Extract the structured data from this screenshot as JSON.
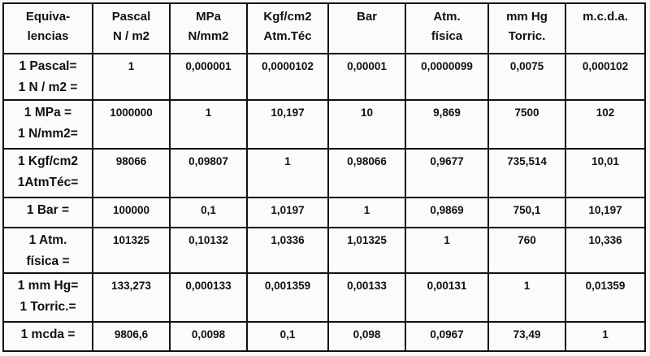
{
  "table": {
    "header": [
      "Equiva-\nlencias",
      "Pascal\nN / m2",
      "MPa\nN/mm2",
      "Kgf/cm2\nAtm.Téc",
      "Bar",
      "Atm.\nfísica",
      "mm Hg\nTorric.",
      "m.c.d.a."
    ],
    "rows": [
      [
        "1 Pascal=\n1 N / m2 =",
        "1",
        "0,000001",
        "0,0000102",
        "0,00001",
        "0,0000099",
        "0,0075",
        "0,000102"
      ],
      [
        "1 MPa =\n1 N/mm2=",
        "1000000",
        "1",
        "10,197",
        "10",
        "9,869",
        "7500",
        "102"
      ],
      [
        "1 Kgf/cm2\n1AtmTéc=",
        "98066",
        "0,09807",
        "1",
        "0,98066",
        "0,9677",
        "735,514",
        "10,01"
      ],
      [
        "1 Bar =",
        "100000",
        "0,1",
        "1,0197",
        "1",
        "0,9869",
        "750,1",
        "10,197"
      ],
      [
        "1 Atm.\nfísica =",
        "101325",
        "0,10132",
        "1,0336",
        "1,01325",
        "1",
        "760",
        "10,336"
      ],
      [
        "1 mm Hg=\n1 Torric.=",
        "133,273",
        "0,000133",
        "0,001359",
        "0,00133",
        "0,00131",
        "1",
        "0,01359"
      ],
      [
        "1 mcda =",
        "9806,6",
        "0,0098",
        "0,1",
        "0,098",
        "0,0967",
        "73,49",
        "1"
      ]
    ]
  }
}
